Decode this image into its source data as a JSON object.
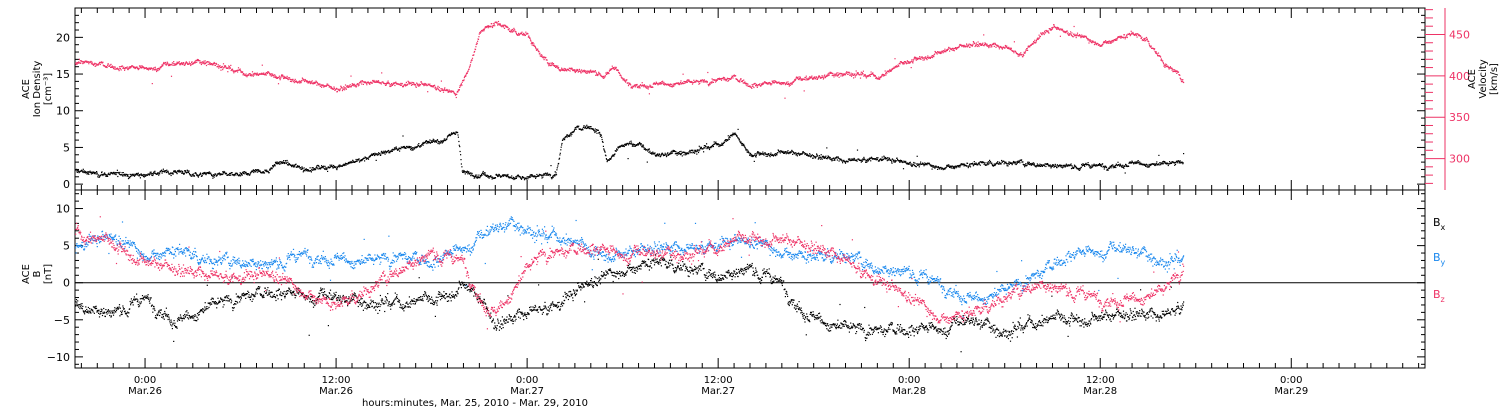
{
  "chart_data": [
    {
      "type": "scatter",
      "title": "",
      "xlabel": "hours:minutes, Mar. 25, 2010 - Mar. 29, 2010",
      "x_ticks": [
        {
          "time": "0:00",
          "date": "Mar.26",
          "hour": 0
        },
        {
          "time": "12:00",
          "date": "Mar.26",
          "hour": 12
        },
        {
          "time": "0:00",
          "date": "Mar.27",
          "hour": 24
        },
        {
          "time": "12:00",
          "date": "Mar.27",
          "hour": 36
        },
        {
          "time": "0:00",
          "date": "Mar.28",
          "hour": 48
        },
        {
          "time": "12:00",
          "date": "Mar.28",
          "hour": 60
        },
        {
          "time": "0:00",
          "date": "Mar.29",
          "hour": 72
        }
      ],
      "xlim": [
        -4.4,
        80.4
      ],
      "data_end_hour": 65.2,
      "left_axis": {
        "label_lines": [
          "ACE",
          "Ion Density",
          "[cm⁻³]"
        ],
        "ylim": [
          -0.8,
          24
        ],
        "ticks": [
          "0",
          "5",
          "10",
          "15",
          "20"
        ]
      },
      "right_axis": {
        "label_lines": [
          "ACE",
          "Velocity",
          "[km/s]"
        ],
        "ylim": [
          262,
          482
        ],
        "ticks": [
          "300",
          "350",
          "400",
          "450"
        ],
        "color": "#ee3366"
      },
      "series": [
        {
          "name": "",
          "axis": "left",
          "color": "#000000",
          "hours": [
            -4.4,
            -2,
            0,
            2,
            4,
            6,
            7.5,
            8.5,
            10,
            12,
            14,
            16,
            18,
            19,
            19.6,
            19.9,
            21,
            23,
            24,
            25,
            25.8,
            26.2,
            27,
            28,
            28.6,
            29,
            29.8,
            30.5,
            32,
            34,
            36,
            37,
            37.6,
            38,
            40,
            42,
            44,
            46,
            48,
            50,
            52,
            54,
            56,
            58,
            60,
            62,
            64,
            65.2
          ],
          "values": [
            1.8,
            1.5,
            1.5,
            1.8,
            1.2,
            1.3,
            2.0,
            3.0,
            2.2,
            2.5,
            3.8,
            4.8,
            5.8,
            6.5,
            7.2,
            1.8,
            1.3,
            1.2,
            1.0,
            1.2,
            1.5,
            6.0,
            7.5,
            8.0,
            7.0,
            3.0,
            5.2,
            6.0,
            4.0,
            4.5,
            5.5,
            7.0,
            4.8,
            4.0,
            4.5,
            4.0,
            3.2,
            3.5,
            2.8,
            2.5,
            2.8,
            3.0,
            2.8,
            2.5,
            2.6,
            3.0,
            2.8,
            3.0
          ]
        },
        {
          "name": "",
          "axis": "right",
          "color": "#ee3366",
          "hours": [
            -4.4,
            -2,
            0,
            2,
            4,
            6,
            8,
            10,
            12,
            14,
            16,
            18,
            19.5,
            19.9,
            20.5,
            21,
            22,
            23,
            24,
            25,
            26,
            27,
            28,
            29,
            29.5,
            30,
            31,
            33,
            35,
            37,
            38,
            40,
            42,
            44,
            46,
            48,
            50,
            52,
            54,
            55,
            56,
            57,
            58,
            60,
            62,
            63,
            64,
            64.5,
            65.2
          ],
          "values": [
            418,
            412,
            410,
            415,
            418,
            405,
            400,
            395,
            385,
            393,
            390,
            388,
            378,
            395,
            420,
            455,
            465,
            455,
            450,
            420,
            410,
            408,
            405,
            402,
            412,
            395,
            390,
            392,
            393,
            398,
            390,
            393,
            398,
            405,
            400,
            418,
            430,
            440,
            435,
            425,
            445,
            458,
            452,
            440,
            452,
            442,
            415,
            408,
            395
          ]
        }
      ]
    },
    {
      "type": "scatter",
      "title": "",
      "left_axis": {
        "label_lines": [
          "ACE",
          "B",
          "[nT]"
        ],
        "ylim": [
          -11.5,
          12.5
        ],
        "ticks": [
          "−10",
          "−5",
          "0",
          "5",
          "10"
        ]
      },
      "zero_line": true,
      "series": [
        {
          "name": "Bx",
          "legend_main": "B",
          "legend_sub": "x",
          "color": "#000000",
          "hours": [
            -4.4,
            -2,
            0,
            2,
            4,
            6,
            8,
            10,
            12,
            14,
            16,
            18,
            19,
            20,
            21,
            22,
            24,
            26,
            28,
            30,
            32,
            34,
            36,
            38,
            40,
            41,
            42,
            44,
            46,
            48,
            50,
            52,
            54,
            56,
            58,
            60,
            62,
            64,
            65.2
          ],
          "values": [
            -3,
            -4,
            -2,
            -5,
            -3,
            -2,
            -1,
            -1.5,
            -2,
            -2.5,
            -2.5,
            -2.5,
            -1.5,
            0,
            -2,
            -5.5,
            -4,
            -3,
            0,
            2,
            3,
            2,
            1,
            2,
            0,
            -3,
            -4.5,
            -6,
            -6.5,
            -6,
            -6,
            -5,
            -6.5,
            -5,
            -5,
            -4.5,
            -4,
            -4.5,
            -3
          ]
        },
        {
          "name": "By",
          "legend_main": "B",
          "legend_sub": "y",
          "color": "#1a88ee",
          "hours": [
            -4.4,
            -2,
            0,
            2,
            4,
            6,
            8,
            10,
            12,
            14,
            16,
            18,
            20,
            21,
            22,
            23,
            24,
            25,
            26,
            28,
            30,
            32,
            34,
            36,
            38,
            40,
            42,
            44,
            46,
            48,
            50,
            52,
            54,
            56,
            58,
            60,
            62,
            64,
            65.2
          ],
          "values": [
            5,
            6,
            4,
            4.5,
            3,
            3,
            2.5,
            4,
            3.5,
            3,
            3.5,
            3,
            5,
            6,
            7.5,
            8,
            7.5,
            6.5,
            6.5,
            4,
            4,
            5,
            4.5,
            5,
            5.5,
            4.5,
            3.5,
            3.8,
            2,
            1.5,
            0,
            -2,
            -1,
            1,
            4,
            4.5,
            4.5,
            3,
            3.5
          ]
        },
        {
          "name": "Bz",
          "legend_main": "B",
          "legend_sub": "z",
          "color": "#ee3366",
          "hours": [
            -4.4,
            -2,
            0,
            2,
            4,
            6,
            8,
            10,
            12,
            14,
            16,
            18,
            20,
            21,
            22,
            23,
            24,
            25,
            26,
            28,
            30,
            32,
            34,
            36,
            38,
            40,
            42,
            44,
            46,
            48,
            50,
            52,
            54,
            56,
            58,
            60,
            62,
            64,
            65.2
          ],
          "values": [
            7,
            5,
            3,
            2,
            1,
            0.5,
            1,
            -1,
            -3,
            -1,
            2,
            4,
            3,
            -2,
            -4,
            -1,
            2,
            4,
            4,
            5,
            4,
            4,
            4,
            5,
            6,
            6,
            5,
            3,
            0,
            -2,
            -4.5,
            -4,
            -2,
            0,
            -1,
            -2,
            -2,
            -1,
            2
          ]
        }
      ]
    }
  ]
}
